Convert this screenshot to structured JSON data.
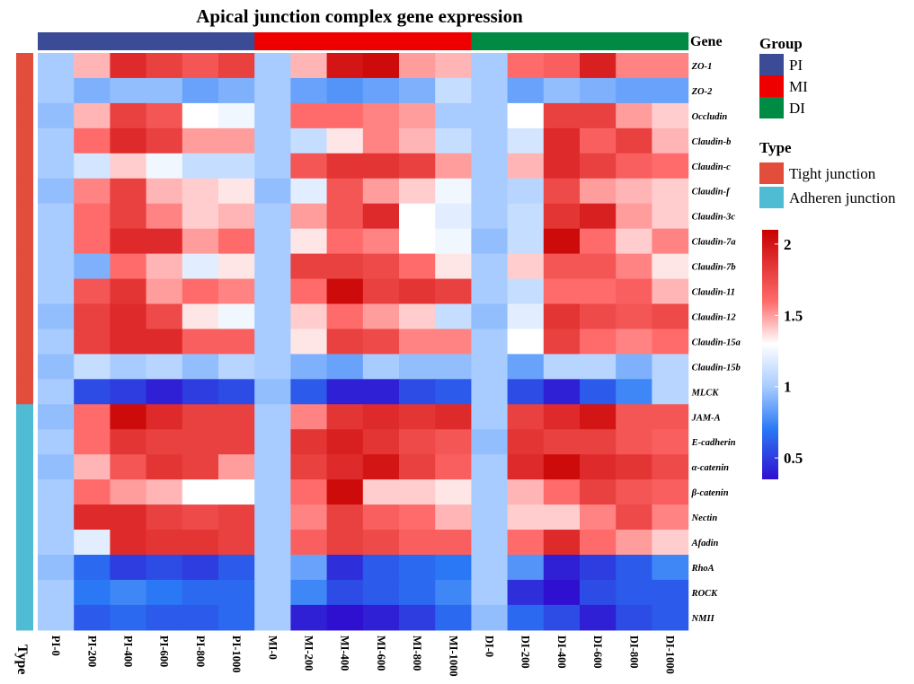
{
  "chart_data": {
    "type": "heatmap",
    "title": "Apical junction complex gene expression",
    "columns": [
      "PI-0",
      "PI-200",
      "PI-400",
      "PI-600",
      "PI-800",
      "PI-1000",
      "MI-0",
      "MI-200",
      "MI-400",
      "MI-600",
      "MI-800",
      "MI-1000",
      "DI-0",
      "DI-200",
      "DI-400",
      "DI-600",
      "DI-800",
      "DI-1000"
    ],
    "column_groups": [
      "PI",
      "PI",
      "PI",
      "PI",
      "PI",
      "PI",
      "MI",
      "MI",
      "MI",
      "MI",
      "MI",
      "MI",
      "DI",
      "DI",
      "DI",
      "DI",
      "DI",
      "DI"
    ],
    "rows": [
      "ZO-1",
      "ZO-2",
      "Occludin",
      "Claudin-b",
      "Claudin-c",
      "Claudin-f",
      "Claudin-3c",
      "Claudin-7a",
      "Claudin-7b",
      "Claudin-11",
      "Claudin-12",
      "Claudin-15a",
      "Claudin-15b",
      "MLCK",
      "JAM-A",
      "E-cadherin",
      "α-catenin",
      "β-catenin",
      "Nectin",
      "Afadin",
      "RhoA",
      "ROCK",
      "NMII"
    ],
    "row_types": [
      "Tight junction",
      "Tight junction",
      "Tight junction",
      "Tight junction",
      "Tight junction",
      "Tight junction",
      "Tight junction",
      "Tight junction",
      "Tight junction",
      "Tight junction",
      "Tight junction",
      "Tight junction",
      "Tight junction",
      "Tight junction",
      "Adheren junction",
      "Adheren junction",
      "Adheren junction",
      "Adheren junction",
      "Adheren junction",
      "Adheren junction",
      "Adheren junction",
      "Adheren junction",
      "Adheren junction"
    ],
    "values": [
      [
        1.0,
        1.45,
        1.9,
        1.8,
        1.7,
        1.8,
        1.0,
        1.45,
        2.0,
        2.05,
        1.5,
        1.45,
        1.0,
        1.6,
        1.65,
        1.95,
        1.55,
        1.55
      ],
      [
        1.0,
        0.9,
        0.95,
        0.95,
        0.85,
        0.9,
        1.0,
        0.85,
        0.8,
        0.85,
        0.9,
        1.1,
        1.0,
        0.85,
        0.95,
        0.9,
        0.85,
        0.85
      ],
      [
        0.95,
        1.45,
        1.8,
        1.7,
        1.3,
        1.25,
        1.0,
        1.6,
        1.6,
        1.55,
        1.5,
        1.0,
        1.0,
        1.3,
        1.8,
        1.8,
        1.5,
        1.4
      ],
      [
        1.0,
        1.6,
        1.9,
        1.8,
        1.5,
        1.5,
        1.0,
        1.1,
        1.35,
        1.55,
        1.45,
        1.1,
        1.0,
        1.15,
        1.9,
        1.65,
        1.8,
        1.45
      ],
      [
        1.0,
        1.15,
        1.4,
        1.25,
        1.1,
        1.1,
        1.0,
        1.7,
        1.85,
        1.85,
        1.8,
        1.5,
        1.0,
        1.45,
        1.9,
        1.8,
        1.65,
        1.6
      ],
      [
        0.95,
        1.55,
        1.8,
        1.45,
        1.4,
        1.35,
        0.95,
        1.2,
        1.7,
        1.5,
        1.4,
        1.25,
        1.0,
        1.05,
        1.75,
        1.5,
        1.45,
        1.4
      ],
      [
        1.0,
        1.6,
        1.8,
        1.55,
        1.4,
        1.45,
        1.0,
        1.5,
        1.7,
        1.9,
        1.3,
        1.2,
        1.0,
        1.1,
        1.85,
        1.95,
        1.5,
        1.4
      ],
      [
        1.0,
        1.6,
        1.9,
        1.9,
        1.5,
        1.6,
        1.0,
        1.35,
        1.6,
        1.55,
        1.3,
        1.25,
        0.95,
        1.1,
        2.05,
        1.6,
        1.4,
        1.55
      ],
      [
        1.0,
        0.9,
        1.6,
        1.45,
        1.2,
        1.35,
        1.0,
        1.8,
        1.8,
        1.75,
        1.6,
        1.35,
        1.0,
        1.4,
        1.7,
        1.7,
        1.55,
        1.35
      ],
      [
        1.0,
        1.7,
        1.85,
        1.5,
        1.6,
        1.55,
        1.0,
        1.6,
        2.05,
        1.8,
        1.85,
        1.8,
        1.0,
        1.1,
        1.6,
        1.6,
        1.65,
        1.45
      ],
      [
        0.95,
        1.8,
        1.9,
        1.75,
        1.35,
        1.25,
        1.0,
        1.4,
        1.6,
        1.5,
        1.4,
        1.1,
        0.95,
        1.2,
        1.85,
        1.75,
        1.7,
        1.75
      ],
      [
        1.0,
        1.8,
        1.9,
        1.9,
        1.65,
        1.65,
        1.0,
        1.35,
        1.8,
        1.75,
        1.55,
        1.55,
        1.0,
        1.3,
        1.8,
        1.6,
        1.55,
        1.6
      ],
      [
        0.95,
        1.1,
        1.0,
        1.05,
        0.95,
        1.05,
        1.0,
        0.9,
        0.85,
        1.0,
        0.95,
        0.95,
        1.0,
        0.85,
        1.05,
        1.05,
        0.9,
        1.05
      ],
      [
        1.0,
        0.55,
        0.5,
        0.4,
        0.5,
        0.55,
        0.95,
        0.6,
        0.4,
        0.4,
        0.55,
        0.6,
        1.0,
        0.55,
        0.4,
        0.6,
        0.75,
        1.05
      ],
      [
        0.95,
        1.6,
        2.05,
        1.9,
        1.8,
        1.8,
        1.0,
        1.55,
        1.85,
        1.9,
        1.85,
        1.9,
        1.0,
        1.8,
        1.9,
        2.0,
        1.7,
        1.7
      ],
      [
        1.0,
        1.6,
        1.85,
        1.8,
        1.8,
        1.8,
        1.0,
        1.85,
        1.95,
        1.85,
        1.75,
        1.7,
        0.95,
        1.85,
        1.8,
        1.8,
        1.7,
        1.65
      ],
      [
        0.95,
        1.45,
        1.7,
        1.85,
        1.8,
        1.5,
        1.0,
        1.8,
        1.9,
        2.0,
        1.8,
        1.65,
        1.0,
        1.9,
        2.05,
        1.9,
        1.85,
        1.75
      ],
      [
        1.0,
        1.6,
        1.5,
        1.45,
        1.3,
        1.3,
        1.0,
        1.6,
        2.05,
        1.4,
        1.4,
        1.35,
        1.0,
        1.45,
        1.6,
        1.8,
        1.7,
        1.65
      ],
      [
        1.0,
        1.9,
        1.9,
        1.8,
        1.75,
        1.8,
        1.0,
        1.55,
        1.8,
        1.65,
        1.6,
        1.45,
        1.0,
        1.4,
        1.4,
        1.55,
        1.75,
        1.55
      ],
      [
        1.0,
        1.2,
        1.9,
        1.85,
        1.85,
        1.8,
        1.0,
        1.65,
        1.8,
        1.75,
        1.65,
        1.65,
        1.0,
        1.6,
        1.9,
        1.6,
        1.5,
        1.4
      ],
      [
        0.95,
        0.65,
        0.5,
        0.55,
        0.5,
        0.6,
        1.0,
        0.85,
        0.45,
        0.6,
        0.65,
        0.7,
        1.0,
        0.8,
        0.4,
        0.5,
        0.6,
        0.75
      ],
      [
        1.0,
        0.7,
        0.75,
        0.7,
        0.65,
        0.65,
        1.0,
        0.75,
        0.55,
        0.6,
        0.65,
        0.75,
        1.0,
        0.45,
        0.35,
        0.55,
        0.6,
        0.6
      ],
      [
        1.0,
        0.6,
        0.65,
        0.6,
        0.6,
        0.65,
        1.0,
        0.4,
        0.35,
        0.4,
        0.5,
        0.65,
        0.95,
        0.65,
        0.55,
        0.4,
        0.55,
        0.6
      ]
    ],
    "color_scale": {
      "min": 0.35,
      "max": 2.1,
      "stops": [
        {
          "value": 0.35,
          "color": "#3010d0"
        },
        {
          "value": 0.7,
          "color": "#2a78f5"
        },
        {
          "value": 1.0,
          "color": "#a8ccff"
        },
        {
          "value": 1.3,
          "color": "#ffffff"
        },
        {
          "value": 1.6,
          "color": "#ff6a6a"
        },
        {
          "value": 2.1,
          "color": "#c80000"
        }
      ],
      "ticks": [
        0.5,
        1,
        1.5,
        2
      ],
      "tick_labels": [
        "0.5",
        "1",
        "1.5",
        "2"
      ]
    },
    "gene_header": "Gene",
    "type_header": "Type",
    "legend": {
      "group_title": "Group",
      "groups": [
        {
          "name": "PI",
          "color": "#3b4b96"
        },
        {
          "name": "MI",
          "color": "#ee0000"
        },
        {
          "name": "DI",
          "color": "#008b45"
        }
      ],
      "type_title": "Type",
      "types": [
        {
          "name": "Tight junction",
          "color": "#e24d3c"
        },
        {
          "name": "Adheren junction",
          "color": "#4fbcd3"
        }
      ]
    }
  }
}
